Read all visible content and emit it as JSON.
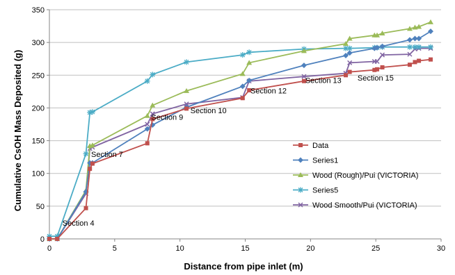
{
  "chart_data": {
    "type": "line",
    "title": "",
    "xlabel": "Distance from pipe inlet (m)",
    "ylabel": "Cumulative CsOH Mass Deposited (g)",
    "xlim": [
      0,
      30
    ],
    "ylim": [
      0,
      350
    ],
    "x_ticks": [
      "0",
      "5",
      "10",
      "15",
      "20",
      "25",
      "30"
    ],
    "y_ticks": [
      "0",
      "50",
      "100",
      "150",
      "200",
      "250",
      "300",
      "350"
    ],
    "grid": "horizontal",
    "legend_position": "right",
    "annotations": [
      {
        "text": "Section 4",
        "x": 1.0,
        "y": 20
      },
      {
        "text": "Section 7",
        "x": 3.2,
        "y": 125
      },
      {
        "text": "Section 9",
        "x": 7.8,
        "y": 182
      },
      {
        "text": "Section 10",
        "x": 10.8,
        "y": 192
      },
      {
        "text": "Section 12",
        "x": 15.4,
        "y": 222
      },
      {
        "text": "Section 13",
        "x": 19.6,
        "y": 238
      },
      {
        "text": "Section 15",
        "x": 23.6,
        "y": 242
      }
    ],
    "series": [
      {
        "name": "Data",
        "color": "#c0504d",
        "marker": "square",
        "x": [
          0,
          0.6,
          2.8,
          3.1,
          3.3,
          7.5,
          7.9,
          10.5,
          14.8,
          15.3,
          19.5,
          22.7,
          23.0,
          24.9,
          25.1,
          25.5,
          27.6,
          28.0,
          28.3,
          29.2
        ],
        "y": [
          0,
          0,
          47,
          107,
          115,
          146,
          183,
          199,
          215,
          227,
          241,
          250,
          255,
          258,
          259,
          262,
          266,
          270,
          272,
          274
        ]
      },
      {
        "name": "Series1",
        "color": "#4f81bd",
        "marker": "diamond",
        "x": [
          0,
          0.6,
          2.8,
          3.1,
          3.3,
          7.5,
          7.9,
          10.5,
          14.8,
          15.3,
          19.5,
          22.7,
          23.0,
          24.9,
          25.1,
          25.5,
          27.6,
          28.0,
          28.3,
          29.2
        ],
        "y": [
          0,
          0,
          72,
          116,
          116,
          168,
          174,
          201,
          233,
          242,
          265,
          280,
          284,
          291,
          292,
          294,
          304,
          306,
          306,
          317
        ]
      },
      {
        "name": "Wood (Rough)/Pui (VICTORIA)",
        "color": "#9bbb59",
        "marker": "triangle",
        "x": [
          0,
          0.6,
          2.8,
          3.1,
          3.3,
          7.5,
          7.9,
          10.5,
          14.8,
          15.3,
          19.5,
          22.7,
          23.0,
          24.9,
          25.1,
          25.5,
          27.6,
          28.0,
          28.3,
          29.2
        ],
        "y": [
          0,
          0,
          74,
          142,
          143,
          188,
          204,
          226,
          252,
          269,
          287,
          298,
          306,
          311,
          311,
          314,
          321,
          323,
          324,
          331
        ]
      },
      {
        "name": "Series5",
        "color": "#4bacc6",
        "marker": "star",
        "x": [
          0,
          0.6,
          2.8,
          3.1,
          3.3,
          7.5,
          7.9,
          10.5,
          14.8,
          15.3,
          19.5,
          22.7,
          23.0,
          24.9,
          25.1,
          25.5,
          27.6,
          28.0,
          28.3,
          29.2
        ],
        "y": [
          4,
          4,
          130,
          193,
          194,
          241,
          251,
          270,
          281,
          285,
          290,
          291,
          291,
          292,
          292,
          293,
          293,
          293,
          293,
          293
        ]
      },
      {
        "name": "Wood Smooth/Pui (VICTORIA)",
        "color": "#8064a2",
        "marker": "x",
        "x": [
          0,
          0.6,
          2.8,
          3.1,
          3.3,
          7.5,
          7.9,
          10.5,
          14.8,
          15.3,
          19.5,
          22.7,
          23.0,
          24.9,
          25.1,
          25.5,
          27.6,
          28.0,
          28.3,
          29.2
        ],
        "y": [
          0,
          0,
          69,
          138,
          140,
          175,
          191,
          206,
          216,
          241,
          248,
          253,
          269,
          271,
          271,
          281,
          282,
          290,
          291,
          291
        ]
      }
    ]
  }
}
